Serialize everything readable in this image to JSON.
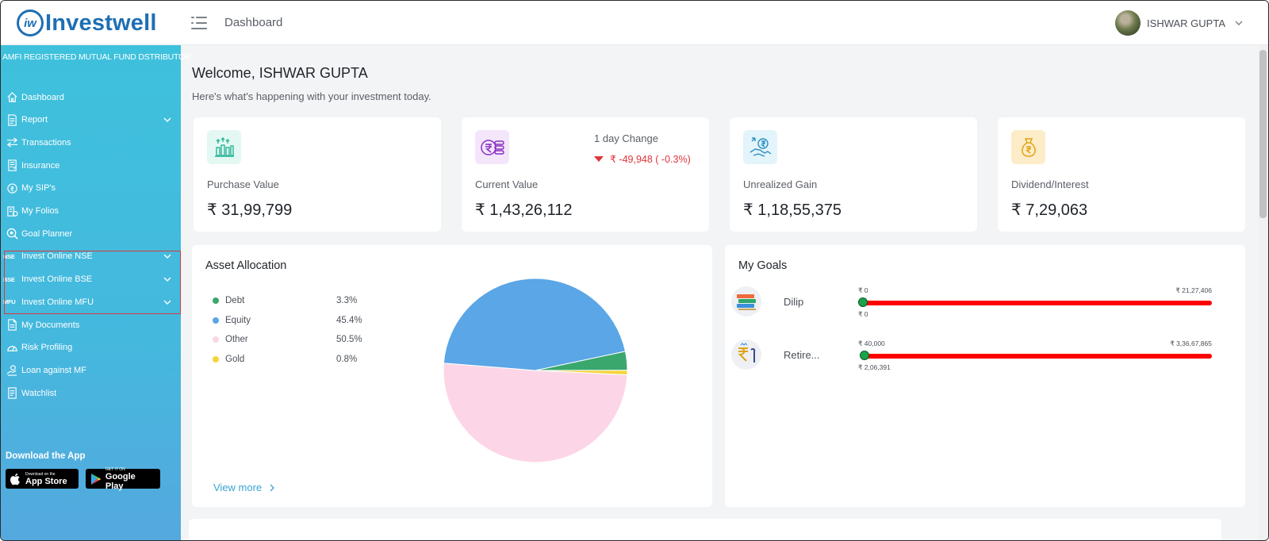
{
  "brand": {
    "logo_mark": "iw",
    "name": "Investwell"
  },
  "header": {
    "title": "Dashboard",
    "user_name": "ISHWAR GUPTA"
  },
  "sidebar": {
    "tagline": "AMFI REGISTERED MUTUAL FUND DSTRIBUTOR",
    "items": [
      {
        "label": "Dashboard",
        "icon": "home-icon"
      },
      {
        "label": "Report",
        "icon": "report-icon",
        "expandable": true
      },
      {
        "label": "Transactions",
        "icon": "transfer-icon"
      },
      {
        "label": "Insurance",
        "icon": "insurance-icon"
      },
      {
        "label": "My SIP's",
        "icon": "sip-icon"
      },
      {
        "label": "My Folios",
        "icon": "folio-icon"
      },
      {
        "label": "Goal Planner",
        "icon": "goal-icon"
      },
      {
        "label": "Invest Online NSE",
        "tag": "NSE",
        "expandable": true
      },
      {
        "label": "Invest Online BSE",
        "tag": "BSE",
        "expandable": true
      },
      {
        "label": "Invest Online MFU",
        "tag": "MFU",
        "expandable": true
      },
      {
        "label": "My Documents",
        "icon": "document-icon"
      },
      {
        "label": "Risk Profiling",
        "icon": "gauge-icon"
      },
      {
        "label": "Loan against MF",
        "icon": "loan-icon"
      },
      {
        "label": "Watchlist",
        "icon": "watchlist-icon"
      }
    ],
    "download_title": "Download the App",
    "app_store": {
      "small": "Download on the",
      "big": "App Store"
    },
    "google_play": {
      "small": "GET IT ON",
      "big": "Google Play"
    }
  },
  "welcome": {
    "title": "Welcome, ISHWAR GUPTA",
    "subtitle": "Here's what's happening with your investment today."
  },
  "stats": [
    {
      "label": "Purchase Value",
      "value": "₹ 31,99,799",
      "icon": "money-growth-icon",
      "icon_bg": "#e3f8f3"
    },
    {
      "label": "Current Value",
      "value": "₹ 1,43,26,112",
      "icon": "rupee-coins-icon",
      "icon_bg": "#f3e6fb",
      "change_label": "1 day Change",
      "change_value": "₹ -49,948 ( -0.3%)"
    },
    {
      "label": "Unrealized Gain",
      "value": "₹ 1,18,55,375",
      "icon": "hand-coin-icon",
      "icon_bg": "#e3f4fb"
    },
    {
      "label": "Dividend/Interest",
      "value": "₹ 7,29,063",
      "icon": "money-bag-icon",
      "icon_bg": "#fdecc8"
    }
  ],
  "asset_allocation": {
    "title": "Asset Allocation",
    "view_more": "View more",
    "legend": [
      {
        "name": "Debt",
        "pct": "3.3%",
        "color": "#3aa76d"
      },
      {
        "name": "Equity",
        "pct": "45.4%",
        "color": "#5aa6e6"
      },
      {
        "name": "Other",
        "pct": "50.5%",
        "color": "#fcd6e6"
      },
      {
        "name": "Gold",
        "pct": "0.8%",
        "color": "#f6d43a"
      }
    ],
    "chart_data": {
      "type": "pie",
      "categories": [
        "Debt",
        "Equity",
        "Other",
        "Gold"
      ],
      "values": [
        3.3,
        45.4,
        50.5,
        0.8
      ],
      "colors": [
        "#3aa76d",
        "#5aa6e6",
        "#fcd6e6",
        "#f6d43a"
      ]
    }
  },
  "goals": {
    "title": "My Goals",
    "items": [
      {
        "name": "Dilip",
        "min": "₹ 0",
        "max": "₹ 21,27,406",
        "current": "₹ 0",
        "icon": "books-icon",
        "progress": 0.0
      },
      {
        "name": "Retire...",
        "min": "₹ 40,000",
        "max": "₹ 3,36,67,865",
        "current": "₹ 2,06,391",
        "icon": "rupee-stick-icon",
        "progress": 0.005
      }
    ]
  }
}
